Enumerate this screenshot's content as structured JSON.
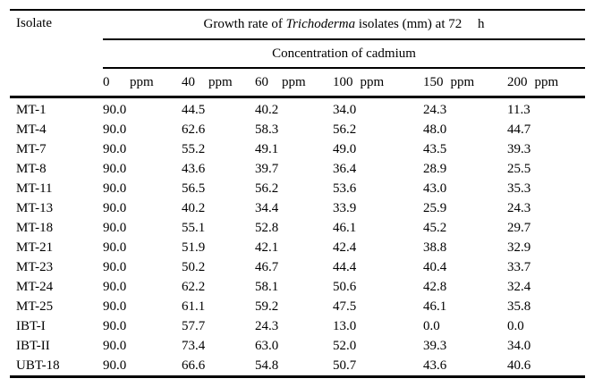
{
  "table": {
    "isolate_header": "Isolate",
    "title": {
      "pre": "Growth rate of",
      "italic": "Trichoderma",
      "post": "isolates (mm) at 72",
      "unit": "h"
    },
    "subtitle": "Concentration of cadmium",
    "concentrations": [
      {
        "value": "0",
        "unit": "ppm"
      },
      {
        "value": "40",
        "unit": "ppm"
      },
      {
        "value": "60",
        "unit": "ppm"
      },
      {
        "value": "100",
        "unit": "ppm"
      },
      {
        "value": "150",
        "unit": "ppm"
      },
      {
        "value": "200",
        "unit": "ppm"
      }
    ],
    "rows": [
      {
        "isolate": "MT-1",
        "values": [
          "90.0",
          "44.5",
          "40.2",
          "34.0",
          "24.3",
          "11.3"
        ]
      },
      {
        "isolate": "MT-4",
        "values": [
          "90.0",
          "62.6",
          "58.3",
          "56.2",
          "48.0",
          "44.7"
        ]
      },
      {
        "isolate": "MT-7",
        "values": [
          "90.0",
          "55.2",
          "49.1",
          "49.0",
          "43.5",
          "39.3"
        ]
      },
      {
        "isolate": "MT-8",
        "values": [
          "90.0",
          "43.6",
          "39.7",
          "36.4",
          "28.9",
          "25.5"
        ]
      },
      {
        "isolate": "MT-11",
        "values": [
          "90.0",
          "56.5",
          "56.2",
          "53.6",
          "43.0",
          "35.3"
        ]
      },
      {
        "isolate": "MT-13",
        "values": [
          "90.0",
          "40.2",
          "34.4",
          "33.9",
          "25.9",
          "24.3"
        ]
      },
      {
        "isolate": "MT-18",
        "values": [
          "90.0",
          "55.1",
          "52.8",
          "46.1",
          "45.2",
          "29.7"
        ]
      },
      {
        "isolate": "MT-21",
        "values": [
          "90.0",
          "51.9",
          "42.1",
          "42.4",
          "38.8",
          "32.9"
        ]
      },
      {
        "isolate": "MT-23",
        "values": [
          "90.0",
          "50.2",
          "46.7",
          "44.4",
          "40.4",
          "33.7"
        ]
      },
      {
        "isolate": "MT-24",
        "values": [
          "90.0",
          "62.2",
          "58.1",
          "50.6",
          "42.8",
          "32.4"
        ]
      },
      {
        "isolate": "MT-25",
        "values": [
          "90.0",
          "61.1",
          "59.2",
          "47.5",
          "46.1",
          "35.8"
        ]
      },
      {
        "isolate": "IBT-I",
        "values": [
          "90.0",
          "57.7",
          "24.3",
          "13.0",
          "0.0",
          "0.0"
        ]
      },
      {
        "isolate": "IBT-II",
        "values": [
          "90.0",
          "73.4",
          "63.0",
          "52.0",
          "39.3",
          "34.0"
        ]
      },
      {
        "isolate": "UBT-18",
        "values": [
          "90.0",
          "66.6",
          "54.8",
          "50.7",
          "43.6",
          "40.6"
        ]
      }
    ]
  },
  "chart_data": {
    "type": "table",
    "title": "Growth rate of Trichoderma isolates (mm) at 72 h",
    "subtitle": "Concentration of cadmium",
    "categories": [
      "0 ppm",
      "40 ppm",
      "60 ppm",
      "100 ppm",
      "150 ppm",
      "200 ppm"
    ],
    "series": [
      {
        "name": "MT-1",
        "values": [
          90.0,
          44.5,
          40.2,
          34.0,
          24.3,
          11.3
        ]
      },
      {
        "name": "MT-4",
        "values": [
          90.0,
          62.6,
          58.3,
          56.2,
          48.0,
          44.7
        ]
      },
      {
        "name": "MT-7",
        "values": [
          90.0,
          55.2,
          49.1,
          49.0,
          43.5,
          39.3
        ]
      },
      {
        "name": "MT-8",
        "values": [
          90.0,
          43.6,
          39.7,
          36.4,
          28.9,
          25.5
        ]
      },
      {
        "name": "MT-11",
        "values": [
          90.0,
          56.5,
          56.2,
          53.6,
          43.0,
          35.3
        ]
      },
      {
        "name": "MT-13",
        "values": [
          90.0,
          40.2,
          34.4,
          33.9,
          25.9,
          24.3
        ]
      },
      {
        "name": "MT-18",
        "values": [
          90.0,
          55.1,
          52.8,
          46.1,
          45.2,
          29.7
        ]
      },
      {
        "name": "MT-21",
        "values": [
          90.0,
          51.9,
          42.1,
          42.4,
          38.8,
          32.9
        ]
      },
      {
        "name": "MT-23",
        "values": [
          90.0,
          50.2,
          46.7,
          44.4,
          40.4,
          33.7
        ]
      },
      {
        "name": "MT-24",
        "values": [
          90.0,
          62.2,
          58.1,
          50.6,
          42.8,
          32.4
        ]
      },
      {
        "name": "MT-25",
        "values": [
          90.0,
          61.1,
          59.2,
          47.5,
          46.1,
          35.8
        ]
      },
      {
        "name": "IBT-I",
        "values": [
          90.0,
          57.7,
          24.3,
          13.0,
          0.0,
          0.0
        ]
      },
      {
        "name": "IBT-II",
        "values": [
          90.0,
          73.4,
          63.0,
          52.0,
          39.3,
          34.0
        ]
      },
      {
        "name": "UBT-18",
        "values": [
          90.0,
          66.6,
          54.8,
          50.7,
          43.6,
          40.6
        ]
      }
    ]
  }
}
